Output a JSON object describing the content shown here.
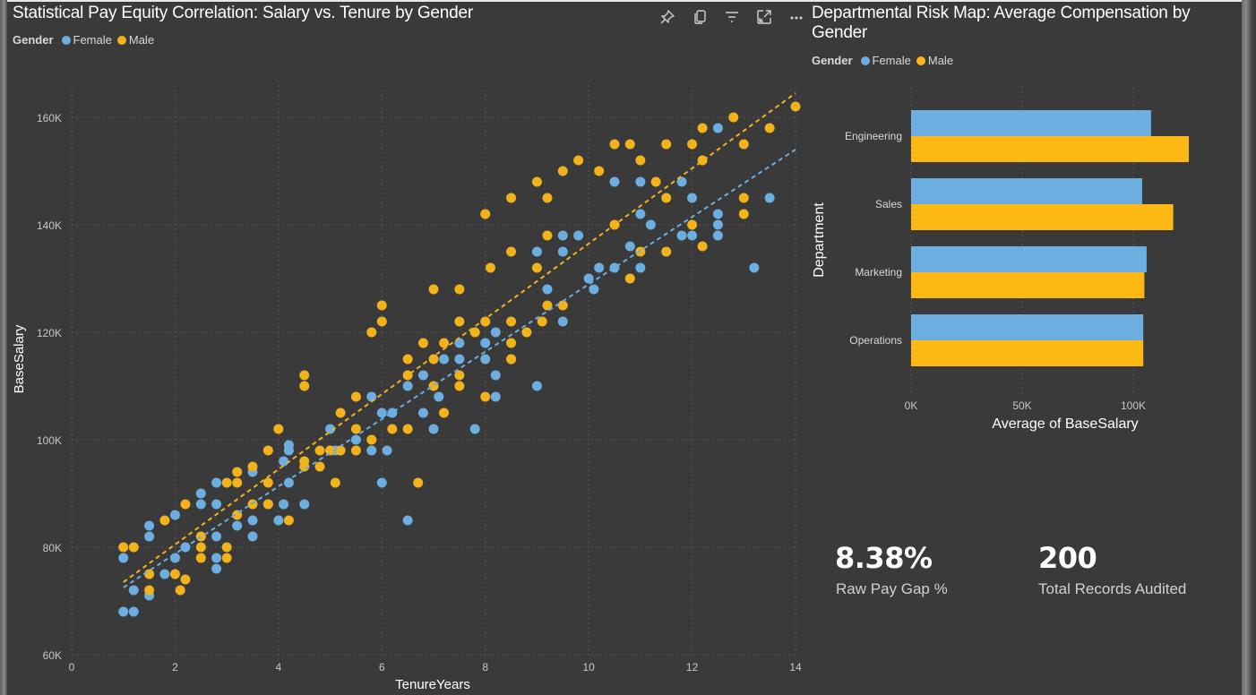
{
  "scatter": {
    "title": "Statistical Pay Equity Correlation: Salary vs. Tenure by Gender",
    "legend_title": "Gender",
    "toolbar": [
      {
        "name": "pin-icon",
        "label": "Pin visual"
      },
      {
        "name": "copy-icon",
        "label": "Copy visual"
      },
      {
        "name": "filter-icon",
        "label": "Filters"
      },
      {
        "name": "focus-mode-icon",
        "label": "Focus mode"
      },
      {
        "name": "more-options-icon",
        "label": "More options"
      }
    ]
  },
  "bar": {
    "title_line1": "Departmental Risk Map: Average Compensation by",
    "title_line2": "Gender",
    "legend_title": "Gender"
  },
  "kpis": [
    {
      "value": "8.38%",
      "label": "Raw Pay Gap %"
    },
    {
      "value": "200",
      "label": "Total Records Audited"
    }
  ],
  "chart_data": [
    {
      "type": "scatter",
      "title": "Statistical Pay Equity Correlation: Salary vs. Tenure by Gender",
      "xlabel": "TenureYears",
      "ylabel": "BaseSalary",
      "xlim": [
        0,
        14
      ],
      "ylim": [
        60000,
        165000
      ],
      "xticks": [
        0,
        2,
        4,
        6,
        8,
        10,
        12,
        14
      ],
      "xtick_labels": [
        "0",
        "2",
        "4",
        "6",
        "8",
        "10",
        "12",
        "14"
      ],
      "yticks": [
        60000,
        80000,
        100000,
        120000,
        140000,
        160000
      ],
      "ytick_labels": [
        "60K",
        "80K",
        "100K",
        "120K",
        "140K",
        "160K"
      ],
      "grid": true,
      "legend": "top-left",
      "series": [
        {
          "name": "Female",
          "color": "#6caee0",
          "trendline": {
            "x": [
              1.0,
              14.0
            ],
            "y": [
              72500,
              154000
            ]
          },
          "points": [
            [
              1.0,
              78000
            ],
            [
              1.0,
              68000
            ],
            [
              1.2,
              68000
            ],
            [
              1.2,
              72000
            ],
            [
              1.5,
              84000
            ],
            [
              1.5,
              82000
            ],
            [
              1.5,
              71000
            ],
            [
              1.8,
              75000
            ],
            [
              2.0,
              86000
            ],
            [
              2.0,
              78000
            ],
            [
              2.2,
              80000
            ],
            [
              2.5,
              90000
            ],
            [
              2.5,
              88000
            ],
            [
              2.8,
              92000
            ],
            [
              2.8,
              88000
            ],
            [
              2.8,
              82000
            ],
            [
              2.8,
              78000
            ],
            [
              2.8,
              76000
            ],
            [
              3.2,
              84000
            ],
            [
              3.5,
              94000
            ],
            [
              3.5,
              85000
            ],
            [
              3.5,
              82000
            ],
            [
              3.8,
              88000
            ],
            [
              4.0,
              85000
            ],
            [
              4.1,
              96000
            ],
            [
              4.1,
              88000
            ],
            [
              4.2,
              98000
            ],
            [
              4.2,
              99000
            ],
            [
              4.2,
              92000
            ],
            [
              4.5,
              88000
            ],
            [
              5.0,
              102000
            ],
            [
              5.1,
              98000
            ],
            [
              5.5,
              100000
            ],
            [
              5.8,
              108000
            ],
            [
              5.8,
              98000
            ],
            [
              6.0,
              105000
            ],
            [
              6.1,
              98000
            ],
            [
              6.0,
              92000
            ],
            [
              6.2,
              105000
            ],
            [
              6.5,
              110000
            ],
            [
              6.5,
              85000
            ],
            [
              6.8,
              112000
            ],
            [
              6.8,
              105000
            ],
            [
              7.0,
              102000
            ],
            [
              7.1,
              108000
            ],
            [
              7.2,
              115000
            ],
            [
              7.5,
              118000
            ],
            [
              7.5,
              115000
            ],
            [
              7.8,
              102000
            ],
            [
              8.0,
              118000
            ],
            [
              8.0,
              115000
            ],
            [
              8.2,
              120000
            ],
            [
              8.2,
              112000
            ],
            [
              8.2,
              108000
            ],
            [
              8.5,
              115000
            ],
            [
              9.0,
              110000
            ],
            [
              9.0,
              135000
            ],
            [
              9.2,
              128000
            ],
            [
              9.5,
              138000
            ],
            [
              9.5,
              135000
            ],
            [
              9.5,
              122000
            ],
            [
              9.8,
              138000
            ],
            [
              10.0,
              130000
            ],
            [
              10.1,
              128000
            ],
            [
              10.2,
              132000
            ],
            [
              10.5,
              132000
            ],
            [
              10.5,
              148000
            ],
            [
              10.8,
              136000
            ],
            [
              11.0,
              142000
            ],
            [
              11.0,
              132000
            ],
            [
              11.0,
              148000
            ],
            [
              11.2,
              140000
            ],
            [
              11.8,
              138000
            ],
            [
              12.0,
              145000
            ],
            [
              12.0,
              138000
            ],
            [
              11.8,
              148000
            ],
            [
              12.5,
              158000
            ],
            [
              12.5,
              142000
            ],
            [
              12.5,
              140000
            ],
            [
              12.5,
              138000
            ],
            [
              13.2,
              132000
            ],
            [
              13.5,
              145000
            ]
          ]
        },
        {
          "name": "Male",
          "color": "#f2b21b",
          "trendline": {
            "x": [
              1.0,
              14.0
            ],
            "y": [
              73500,
              164500
            ]
          },
          "points": [
            [
              1.0,
              80000
            ],
            [
              1.2,
              80000
            ],
            [
              1.5,
              75000
            ],
            [
              1.5,
              72000
            ],
            [
              1.8,
              85000
            ],
            [
              2.0,
              75000
            ],
            [
              2.1,
              72000
            ],
            [
              2.2,
              74000
            ],
            [
              2.2,
              88000
            ],
            [
              2.5,
              82000
            ],
            [
              2.5,
              80000
            ],
            [
              2.5,
              78000
            ],
            [
              3.0,
              92000
            ],
            [
              3.0,
              80000
            ],
            [
              3.0,
              78000
            ],
            [
              3.2,
              86000
            ],
            [
              3.2,
              92000
            ],
            [
              3.2,
              94000
            ],
            [
              3.5,
              95000
            ],
            [
              3.5,
              88000
            ],
            [
              3.8,
              98000
            ],
            [
              3.8,
              92000
            ],
            [
              3.8,
              88000
            ],
            [
              4.0,
              102000
            ],
            [
              4.2,
              85000
            ],
            [
              4.5,
              112000
            ],
            [
              4.5,
              110000
            ],
            [
              4.5,
              96000
            ],
            [
              4.5,
              95000
            ],
            [
              4.8,
              95000
            ],
            [
              4.8,
              98000
            ],
            [
              5.0,
              98000
            ],
            [
              5.1,
              92000
            ],
            [
              5.2,
              105000
            ],
            [
              5.2,
              98000
            ],
            [
              5.5,
              108000
            ],
            [
              5.5,
              102000
            ],
            [
              5.5,
              98000
            ],
            [
              5.8,
              120000
            ],
            [
              5.8,
              100000
            ],
            [
              6.0,
              122000
            ],
            [
              6.0,
              125000
            ],
            [
              6.2,
              102000
            ],
            [
              6.5,
              115000
            ],
            [
              6.5,
              112000
            ],
            [
              6.5,
              102000
            ],
            [
              6.7,
              92000
            ],
            [
              6.8,
              118000
            ],
            [
              7.0,
              128000
            ],
            [
              7.0,
              115000
            ],
            [
              7.0,
              110000
            ],
            [
              7.2,
              118000
            ],
            [
              7.2,
              105000
            ],
            [
              7.5,
              128000
            ],
            [
              7.5,
              122000
            ],
            [
              7.5,
              112000
            ],
            [
              7.5,
              110000
            ],
            [
              7.8,
              120000
            ],
            [
              8.0,
              142000
            ],
            [
              8.0,
              122000
            ],
            [
              8.0,
              108000
            ],
            [
              8.1,
              132000
            ],
            [
              8.5,
              145000
            ],
            [
              8.5,
              135000
            ],
            [
              8.5,
              122000
            ],
            [
              8.5,
              118000
            ],
            [
              8.5,
              115000
            ],
            [
              8.8,
              120000
            ],
            [
              9.0,
              148000
            ],
            [
              9.0,
              132000
            ],
            [
              9.1,
              122000
            ],
            [
              9.2,
              138000
            ],
            [
              9.2,
              145000
            ],
            [
              9.2,
              125000
            ],
            [
              9.5,
              150000
            ],
            [
              9.5,
              125000
            ],
            [
              9.8,
              152000
            ],
            [
              10.2,
              150000
            ],
            [
              10.5,
              155000
            ],
            [
              10.5,
              140000
            ],
            [
              10.8,
              155000
            ],
            [
              10.8,
              130000
            ],
            [
              11.0,
              152000
            ],
            [
              11.0,
              135000
            ],
            [
              11.3,
              148000
            ],
            [
              11.5,
              155000
            ],
            [
              11.5,
              145000
            ],
            [
              11.5,
              135000
            ],
            [
              12.0,
              155000
            ],
            [
              12.0,
              140000
            ],
            [
              12.2,
              158000
            ],
            [
              12.2,
              152000
            ],
            [
              12.2,
              136000
            ],
            [
              12.8,
              160000
            ],
            [
              13.0,
              155000
            ],
            [
              13.0,
              145000
            ],
            [
              13.0,
              142000
            ],
            [
              13.5,
              158000
            ],
            [
              14.0,
              162000
            ]
          ]
        }
      ]
    },
    {
      "type": "bar",
      "orientation": "horizontal",
      "title": "Departmental Risk Map: Average Compensation by Gender",
      "xlabel": "Average of BaseSalary",
      "ylabel": "Department",
      "categories": [
        "Engineering",
        "Sales",
        "Marketing",
        "Operations"
      ],
      "xlim": [
        0,
        125000
      ],
      "xticks": [
        0,
        50000,
        100000
      ],
      "xtick_labels": [
        "0K",
        "50K",
        "100K"
      ],
      "grid": true,
      "legend": "top-left",
      "series": [
        {
          "name": "Female",
          "color": "#6caee0",
          "values": [
            108000,
            104000,
            106000,
            104500
          ]
        },
        {
          "name": "Male",
          "color": "#fdb813",
          "values": [
            125000,
            118000,
            105000,
            104500
          ]
        }
      ]
    }
  ]
}
